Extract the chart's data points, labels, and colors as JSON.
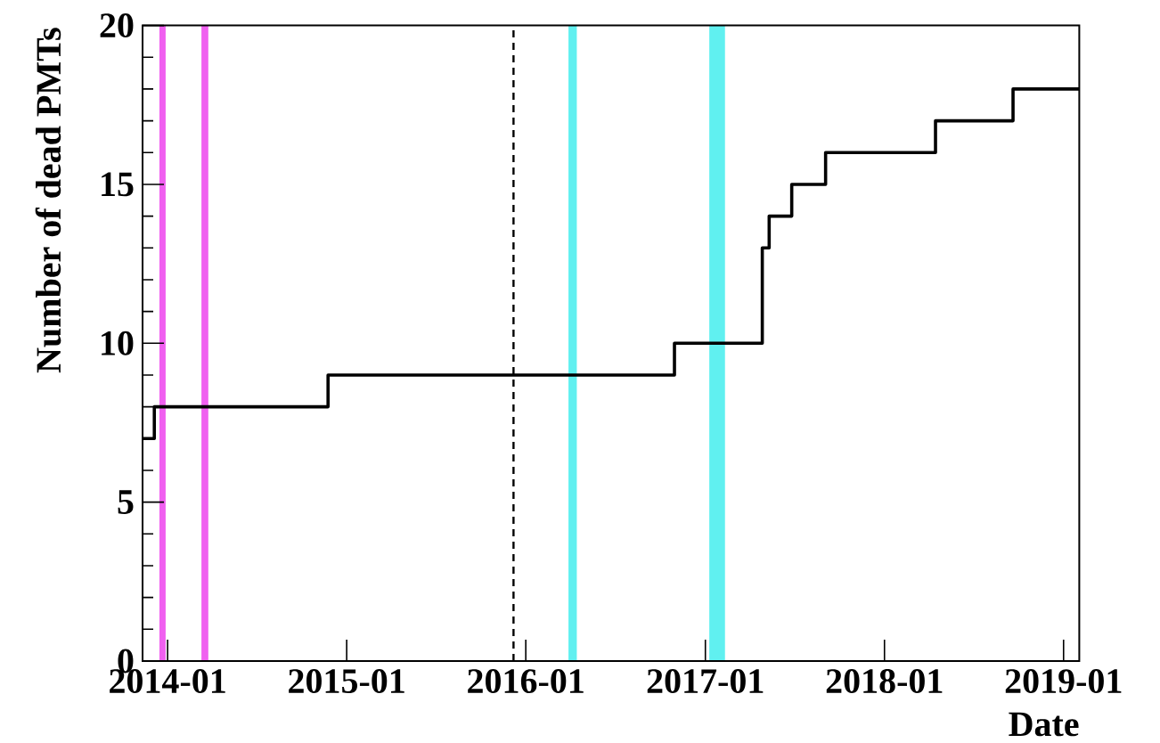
{
  "chart_data": {
    "type": "step",
    "xlabel": "Date",
    "ylabel": "Number of dead PMTs",
    "x": [
      "2013-11-11",
      "2013-12-05",
      "2014-11-24",
      "2016-10-30",
      "2017-04-27",
      "2017-05-11",
      "2017-06-26",
      "2017-09-03",
      "2018-04-15",
      "2018-09-20",
      "2019-02-02"
    ],
    "values": [
      7,
      8,
      9,
      10,
      13,
      14,
      15,
      16,
      17,
      18,
      18
    ],
    "color": "#000000",
    "xlim": [
      "2013-11-11",
      "2019-02-02"
    ],
    "ylim": [
      0,
      20
    ],
    "xticks": [
      "2014-01",
      "2015-01",
      "2016-01",
      "2017-01",
      "2018-01",
      "2019-01"
    ],
    "yticks": [
      0,
      5,
      10,
      15,
      20
    ],
    "ref_lines": [
      {
        "axis": "x",
        "value": "2015-12-07",
        "line_style": "dashed",
        "color": "#000000"
      }
    ],
    "bands": [
      {
        "axis": "x",
        "from": "2013-12-15",
        "to": "2013-12-28",
        "color": "#f060f0"
      },
      {
        "axis": "x",
        "from": "2014-03-11",
        "to": "2014-03-25",
        "color": "#f060f0"
      },
      {
        "axis": "x",
        "from": "2016-03-28",
        "to": "2016-04-14",
        "color": "#60f0f0"
      },
      {
        "axis": "x",
        "from": "2017-01-09",
        "to": "2017-02-10",
        "color": "#60f0f0"
      }
    ]
  }
}
